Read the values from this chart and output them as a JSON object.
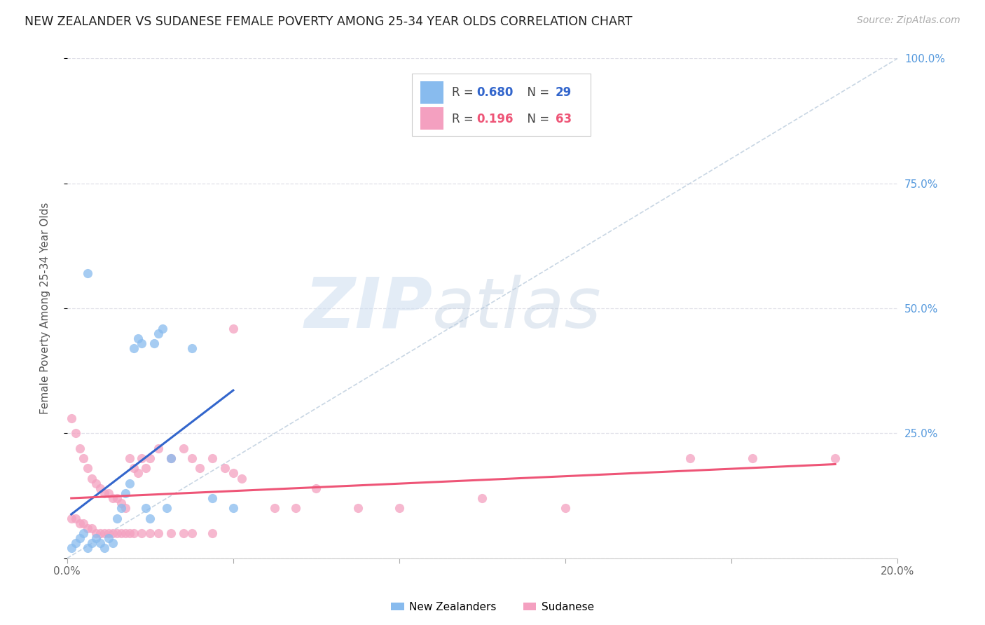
{
  "title": "NEW ZEALANDER VS SUDANESE FEMALE POVERTY AMONG 25-34 YEAR OLDS CORRELATION CHART",
  "source": "Source: ZipAtlas.com",
  "ylabel": "Female Poverty Among 25-34 Year Olds",
  "xlim": [
    0.0,
    0.2
  ],
  "ylim": [
    0.0,
    1.0
  ],
  "xticks": [
    0.0,
    0.04,
    0.08,
    0.12,
    0.16,
    0.2
  ],
  "yticks": [
    0.0,
    0.25,
    0.5,
    0.75,
    1.0
  ],
  "ytick_labels_right": [
    "",
    "25.0%",
    "50.0%",
    "75.0%",
    "100.0%"
  ],
  "grid_color": "#e0e0e8",
  "background_color": "#ffffff",
  "nz_color": "#88bbee",
  "sudanese_color": "#f4a0c0",
  "nz_line_color": "#3366cc",
  "sudanese_line_color": "#ee5577",
  "R_nz": 0.68,
  "N_nz": 29,
  "R_sudanese": 0.196,
  "N_sudanese": 63,
  "nz_scatter_x": [
    0.001,
    0.002,
    0.003,
    0.004,
    0.005,
    0.006,
    0.007,
    0.008,
    0.009,
    0.01,
    0.011,
    0.012,
    0.013,
    0.014,
    0.015,
    0.016,
    0.017,
    0.018,
    0.019,
    0.02,
    0.021,
    0.022,
    0.023,
    0.024,
    0.025,
    0.03,
    0.035,
    0.04,
    0.005
  ],
  "nz_scatter_y": [
    0.02,
    0.03,
    0.04,
    0.05,
    0.02,
    0.03,
    0.04,
    0.03,
    0.02,
    0.04,
    0.03,
    0.08,
    0.1,
    0.13,
    0.15,
    0.42,
    0.44,
    0.43,
    0.1,
    0.08,
    0.43,
    0.45,
    0.46,
    0.1,
    0.2,
    0.42,
    0.12,
    0.1,
    0.57
  ],
  "sudanese_scatter_x": [
    0.001,
    0.001,
    0.002,
    0.002,
    0.003,
    0.003,
    0.004,
    0.004,
    0.005,
    0.005,
    0.006,
    0.006,
    0.007,
    0.007,
    0.008,
    0.008,
    0.009,
    0.009,
    0.01,
    0.01,
    0.011,
    0.011,
    0.012,
    0.012,
    0.013,
    0.013,
    0.014,
    0.014,
    0.015,
    0.015,
    0.016,
    0.016,
    0.017,
    0.018,
    0.018,
    0.019,
    0.02,
    0.02,
    0.022,
    0.022,
    0.025,
    0.025,
    0.028,
    0.028,
    0.03,
    0.03,
    0.032,
    0.035,
    0.035,
    0.038,
    0.04,
    0.042,
    0.05,
    0.055,
    0.06,
    0.07,
    0.08,
    0.1,
    0.12,
    0.15,
    0.165,
    0.185,
    0.04
  ],
  "sudanese_scatter_y": [
    0.28,
    0.08,
    0.25,
    0.08,
    0.22,
    0.07,
    0.2,
    0.07,
    0.18,
    0.06,
    0.16,
    0.06,
    0.15,
    0.05,
    0.14,
    0.05,
    0.13,
    0.05,
    0.13,
    0.05,
    0.12,
    0.05,
    0.12,
    0.05,
    0.11,
    0.05,
    0.1,
    0.05,
    0.2,
    0.05,
    0.18,
    0.05,
    0.17,
    0.2,
    0.05,
    0.18,
    0.2,
    0.05,
    0.22,
    0.05,
    0.2,
    0.05,
    0.22,
    0.05,
    0.2,
    0.05,
    0.18,
    0.2,
    0.05,
    0.18,
    0.17,
    0.16,
    0.1,
    0.1,
    0.14,
    0.1,
    0.1,
    0.12,
    0.1,
    0.2,
    0.2,
    0.2,
    0.46
  ]
}
